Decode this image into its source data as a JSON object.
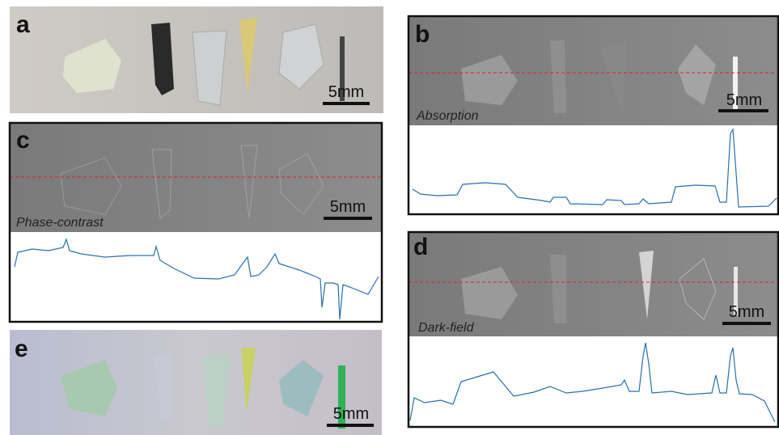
{
  "panels": [
    {
      "label": "a",
      "scale_bar": "5mm"
    },
    {
      "label": "b",
      "caption": "Absorption",
      "scale_bar": "5mm"
    },
    {
      "label": "c",
      "caption": "Phase-contrast",
      "scale_bar": "5mm"
    },
    {
      "label": "d",
      "caption": "Dark-field",
      "scale_bar": "5mm"
    },
    {
      "label": "e",
      "scale_bar": "5mm"
    }
  ]
}
